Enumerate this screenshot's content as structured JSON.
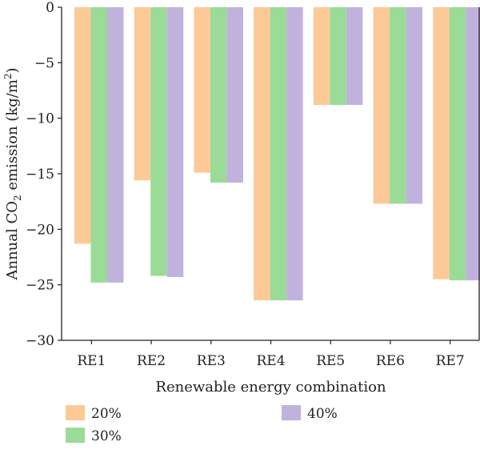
{
  "chart_data": {
    "type": "bar",
    "categories": [
      "RE1",
      "RE2",
      "RE3",
      "RE4",
      "RE5",
      "RE6",
      "RE7"
    ],
    "series": [
      {
        "name": "20%",
        "color": "#fdc996",
        "values": [
          -21.3,
          -15.6,
          -14.9,
          -26.4,
          -8.8,
          -17.7,
          -24.5
        ]
      },
      {
        "name": "30%",
        "color": "#9bdb98",
        "values": [
          -24.8,
          -24.2,
          -15.8,
          -26.4,
          -8.8,
          -17.7,
          -24.6
        ]
      },
      {
        "name": "40%",
        "color": "#c0b2dd",
        "values": [
          -24.8,
          -24.3,
          -15.8,
          -26.4,
          -8.8,
          -17.7,
          -24.6
        ]
      }
    ],
    "xlabel": "Renewable energy combination",
    "ylabel": {
      "prefix": "Annual CO",
      "sub": "2",
      "middle": " emission (kg/m",
      "sup": "2",
      "suffix": ")"
    },
    "ylim": [
      -30,
      0
    ],
    "yticks": [
      0,
      -5,
      -10,
      -15,
      -20,
      -25,
      -30
    ],
    "ytick_labels": [
      "0",
      "−5",
      "−10",
      "−15",
      "−20",
      "−25",
      "−30"
    ],
    "grid": false,
    "legend_position": "bottom"
  }
}
